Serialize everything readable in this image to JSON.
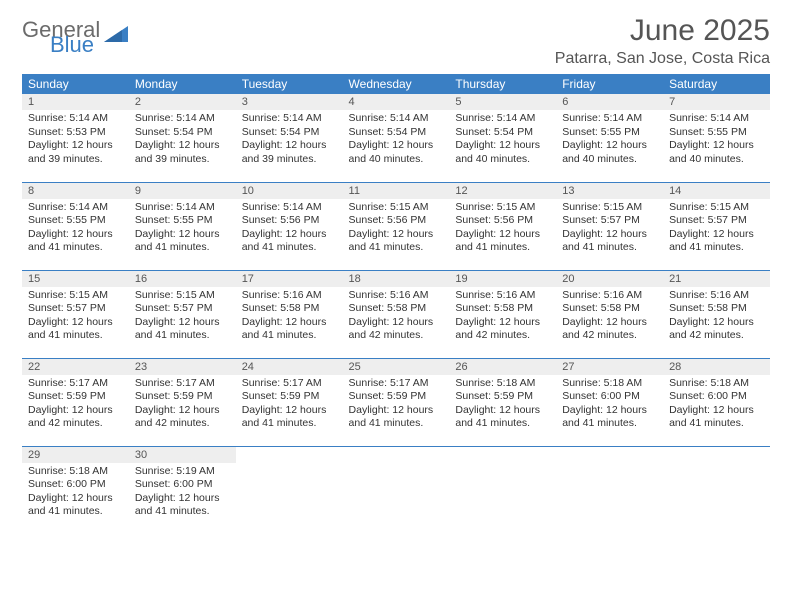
{
  "brand": {
    "word1": "General",
    "word2": "Blue",
    "logo_color": "#3a7fc4",
    "text_color": "#6b6b6b"
  },
  "header": {
    "title": "June 2025",
    "location": "Patarra, San Jose, Costa Rica"
  },
  "colors": {
    "header_bg": "#3a7fc4",
    "header_text": "#ffffff",
    "daynum_bg": "#eeeeee",
    "border": "#3a7fc4",
    "body_text": "#333333"
  },
  "weekdays": [
    "Sunday",
    "Monday",
    "Tuesday",
    "Wednesday",
    "Thursday",
    "Friday",
    "Saturday"
  ],
  "weeks": [
    [
      {
        "n": "1",
        "sr": "Sunrise: 5:14 AM",
        "ss": "Sunset: 5:53 PM",
        "d1": "Daylight: 12 hours",
        "d2": "and 39 minutes."
      },
      {
        "n": "2",
        "sr": "Sunrise: 5:14 AM",
        "ss": "Sunset: 5:54 PM",
        "d1": "Daylight: 12 hours",
        "d2": "and 39 minutes."
      },
      {
        "n": "3",
        "sr": "Sunrise: 5:14 AM",
        "ss": "Sunset: 5:54 PM",
        "d1": "Daylight: 12 hours",
        "d2": "and 39 minutes."
      },
      {
        "n": "4",
        "sr": "Sunrise: 5:14 AM",
        "ss": "Sunset: 5:54 PM",
        "d1": "Daylight: 12 hours",
        "d2": "and 40 minutes."
      },
      {
        "n": "5",
        "sr": "Sunrise: 5:14 AM",
        "ss": "Sunset: 5:54 PM",
        "d1": "Daylight: 12 hours",
        "d2": "and 40 minutes."
      },
      {
        "n": "6",
        "sr": "Sunrise: 5:14 AM",
        "ss": "Sunset: 5:55 PM",
        "d1": "Daylight: 12 hours",
        "d2": "and 40 minutes."
      },
      {
        "n": "7",
        "sr": "Sunrise: 5:14 AM",
        "ss": "Sunset: 5:55 PM",
        "d1": "Daylight: 12 hours",
        "d2": "and 40 minutes."
      }
    ],
    [
      {
        "n": "8",
        "sr": "Sunrise: 5:14 AM",
        "ss": "Sunset: 5:55 PM",
        "d1": "Daylight: 12 hours",
        "d2": "and 41 minutes."
      },
      {
        "n": "9",
        "sr": "Sunrise: 5:14 AM",
        "ss": "Sunset: 5:55 PM",
        "d1": "Daylight: 12 hours",
        "d2": "and 41 minutes."
      },
      {
        "n": "10",
        "sr": "Sunrise: 5:14 AM",
        "ss": "Sunset: 5:56 PM",
        "d1": "Daylight: 12 hours",
        "d2": "and 41 minutes."
      },
      {
        "n": "11",
        "sr": "Sunrise: 5:15 AM",
        "ss": "Sunset: 5:56 PM",
        "d1": "Daylight: 12 hours",
        "d2": "and 41 minutes."
      },
      {
        "n": "12",
        "sr": "Sunrise: 5:15 AM",
        "ss": "Sunset: 5:56 PM",
        "d1": "Daylight: 12 hours",
        "d2": "and 41 minutes."
      },
      {
        "n": "13",
        "sr": "Sunrise: 5:15 AM",
        "ss": "Sunset: 5:57 PM",
        "d1": "Daylight: 12 hours",
        "d2": "and 41 minutes."
      },
      {
        "n": "14",
        "sr": "Sunrise: 5:15 AM",
        "ss": "Sunset: 5:57 PM",
        "d1": "Daylight: 12 hours",
        "d2": "and 41 minutes."
      }
    ],
    [
      {
        "n": "15",
        "sr": "Sunrise: 5:15 AM",
        "ss": "Sunset: 5:57 PM",
        "d1": "Daylight: 12 hours",
        "d2": "and 41 minutes."
      },
      {
        "n": "16",
        "sr": "Sunrise: 5:15 AM",
        "ss": "Sunset: 5:57 PM",
        "d1": "Daylight: 12 hours",
        "d2": "and 41 minutes."
      },
      {
        "n": "17",
        "sr": "Sunrise: 5:16 AM",
        "ss": "Sunset: 5:58 PM",
        "d1": "Daylight: 12 hours",
        "d2": "and 41 minutes."
      },
      {
        "n": "18",
        "sr": "Sunrise: 5:16 AM",
        "ss": "Sunset: 5:58 PM",
        "d1": "Daylight: 12 hours",
        "d2": "and 42 minutes."
      },
      {
        "n": "19",
        "sr": "Sunrise: 5:16 AM",
        "ss": "Sunset: 5:58 PM",
        "d1": "Daylight: 12 hours",
        "d2": "and 42 minutes."
      },
      {
        "n": "20",
        "sr": "Sunrise: 5:16 AM",
        "ss": "Sunset: 5:58 PM",
        "d1": "Daylight: 12 hours",
        "d2": "and 42 minutes."
      },
      {
        "n": "21",
        "sr": "Sunrise: 5:16 AM",
        "ss": "Sunset: 5:58 PM",
        "d1": "Daylight: 12 hours",
        "d2": "and 42 minutes."
      }
    ],
    [
      {
        "n": "22",
        "sr": "Sunrise: 5:17 AM",
        "ss": "Sunset: 5:59 PM",
        "d1": "Daylight: 12 hours",
        "d2": "and 42 minutes."
      },
      {
        "n": "23",
        "sr": "Sunrise: 5:17 AM",
        "ss": "Sunset: 5:59 PM",
        "d1": "Daylight: 12 hours",
        "d2": "and 42 minutes."
      },
      {
        "n": "24",
        "sr": "Sunrise: 5:17 AM",
        "ss": "Sunset: 5:59 PM",
        "d1": "Daylight: 12 hours",
        "d2": "and 41 minutes."
      },
      {
        "n": "25",
        "sr": "Sunrise: 5:17 AM",
        "ss": "Sunset: 5:59 PM",
        "d1": "Daylight: 12 hours",
        "d2": "and 41 minutes."
      },
      {
        "n": "26",
        "sr": "Sunrise: 5:18 AM",
        "ss": "Sunset: 5:59 PM",
        "d1": "Daylight: 12 hours",
        "d2": "and 41 minutes."
      },
      {
        "n": "27",
        "sr": "Sunrise: 5:18 AM",
        "ss": "Sunset: 6:00 PM",
        "d1": "Daylight: 12 hours",
        "d2": "and 41 minutes."
      },
      {
        "n": "28",
        "sr": "Sunrise: 5:18 AM",
        "ss": "Sunset: 6:00 PM",
        "d1": "Daylight: 12 hours",
        "d2": "and 41 minutes."
      }
    ],
    [
      {
        "n": "29",
        "sr": "Sunrise: 5:18 AM",
        "ss": "Sunset: 6:00 PM",
        "d1": "Daylight: 12 hours",
        "d2": "and 41 minutes."
      },
      {
        "n": "30",
        "sr": "Sunrise: 5:19 AM",
        "ss": "Sunset: 6:00 PM",
        "d1": "Daylight: 12 hours",
        "d2": "and 41 minutes."
      },
      null,
      null,
      null,
      null,
      null
    ]
  ]
}
